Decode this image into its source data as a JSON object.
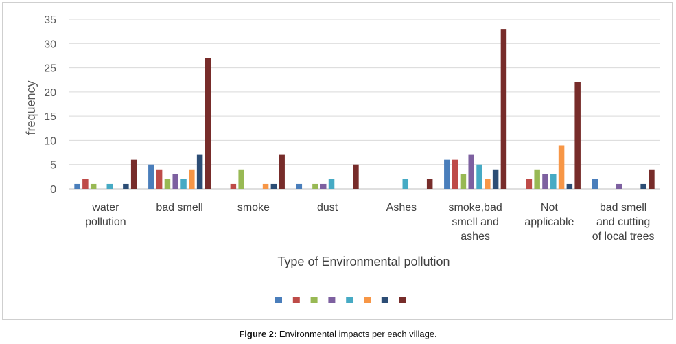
{
  "chart_data": {
    "type": "bar",
    "title": "",
    "xlabel": "Type of Environmental pollution",
    "ylabel": "frequency",
    "ylim": [
      0,
      35
    ],
    "yticks": [
      0,
      5,
      10,
      15,
      20,
      25,
      30,
      35
    ],
    "grid": true,
    "legend_position": "bottom",
    "categories": [
      [
        "water",
        "pollution"
      ],
      [
        "bad smell"
      ],
      [
        "smoke"
      ],
      [
        "dust"
      ],
      [
        "Ashes"
      ],
      [
        "smoke,bad",
        "smell and",
        "ashes"
      ],
      [
        "Not",
        "applicable"
      ],
      [
        "bad smell",
        "and cutting",
        "of local trees"
      ]
    ],
    "series": [
      {
        "color": "#4a7ebb",
        "values": [
          1,
          5,
          0,
          1,
          0,
          6,
          0,
          2
        ]
      },
      {
        "color": "#be4b48",
        "values": [
          2,
          4,
          1,
          0,
          0,
          6,
          2,
          0
        ]
      },
      {
        "color": "#98b954",
        "values": [
          1,
          2,
          4,
          1,
          0,
          3,
          4,
          0
        ]
      },
      {
        "color": "#7d60a0",
        "values": [
          0,
          3,
          0,
          1,
          0,
          7,
          3,
          1
        ]
      },
      {
        "color": "#46aac4",
        "values": [
          1,
          2,
          0,
          2,
          2,
          5,
          3,
          0
        ]
      },
      {
        "color": "#f79646",
        "values": [
          0,
          4,
          1,
          0,
          0,
          2,
          9,
          0
        ]
      },
      {
        "color": "#2c4d75",
        "values": [
          1,
          7,
          1,
          0,
          0,
          4,
          1,
          1
        ]
      },
      {
        "color": "#772c2a",
        "values": [
          6,
          27,
          7,
          5,
          2,
          33,
          22,
          4
        ]
      }
    ]
  },
  "caption": {
    "label": "Figure 2:",
    "text": " Environmental impacts per each village."
  }
}
